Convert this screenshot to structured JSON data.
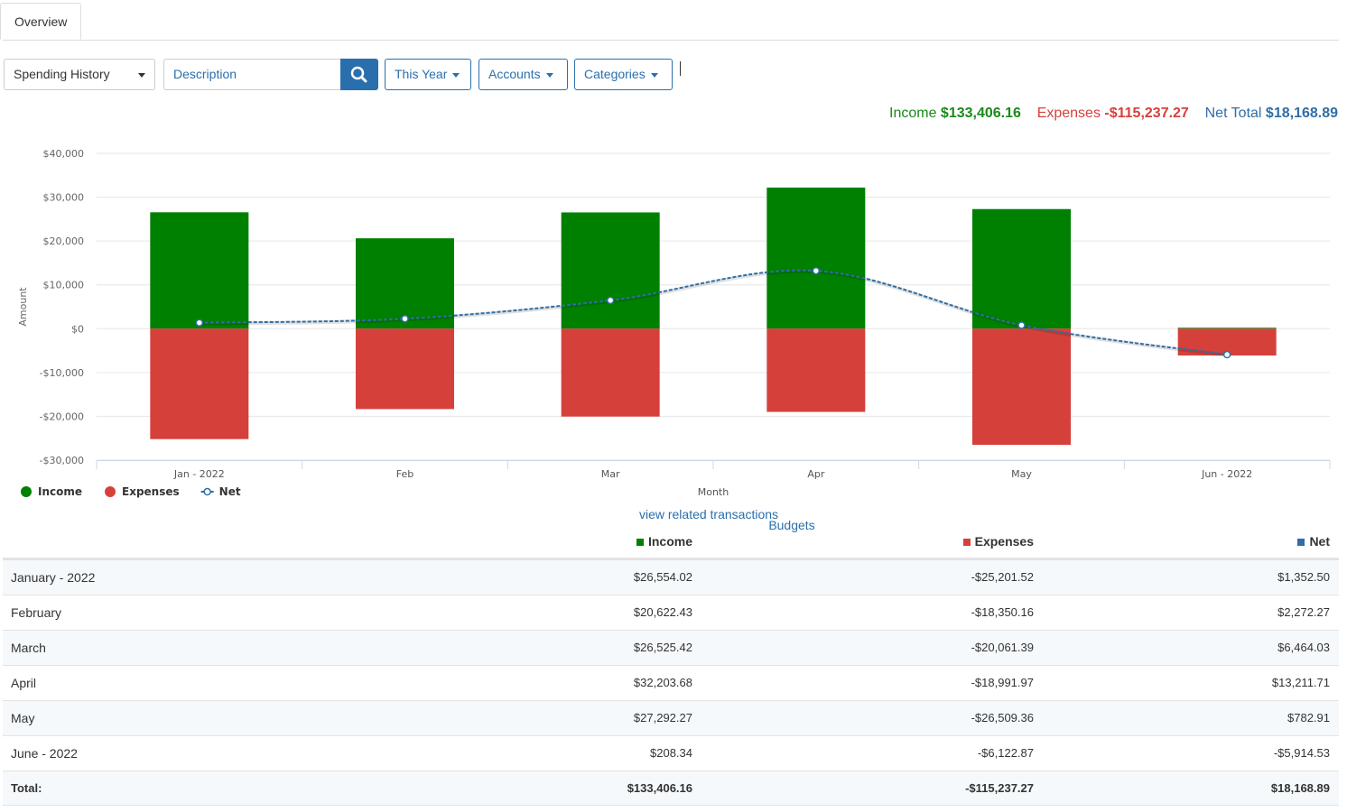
{
  "tabs": [
    "Overview",
    "Budgets"
  ],
  "controls": {
    "report": "Spending History",
    "search_placeholder": "Description",
    "period": "This Year",
    "accounts": "Accounts",
    "categories": "Categories"
  },
  "summary": {
    "income_label": "Income",
    "income": "$133,406.16",
    "expenses_label": "Expenses",
    "expenses": "-$115,237.27",
    "net_label": "Net Total",
    "net": "$18,168.89"
  },
  "chart_data": {
    "type": "bar",
    "categories": [
      "Jan - 2022",
      "Feb",
      "Mar",
      "Apr",
      "May",
      "Jun - 2022"
    ],
    "series": [
      {
        "name": "Income",
        "color": "#008000",
        "values": [
          26554.02,
          20622.43,
          26525.42,
          32203.68,
          27292.27,
          208.34
        ]
      },
      {
        "name": "Expenses",
        "color": "#d6403b",
        "values": [
          -25201.52,
          -18350.16,
          -20061.39,
          -18991.97,
          -26509.36,
          -6122.87
        ]
      },
      {
        "name": "Net",
        "type": "line",
        "color": "#2f6ea6",
        "values": [
          1352.5,
          2272.27,
          6464.03,
          13211.71,
          782.91,
          -5914.53
        ]
      }
    ],
    "xlabel": "Month",
    "ylabel": "Amount",
    "ylim": [
      -30000,
      40000
    ],
    "yticks": [
      {
        "value": -30000,
        "label": "-$30,000"
      },
      {
        "value": -20000,
        "label": "-$20,000"
      },
      {
        "value": -10000,
        "label": "-$10,000"
      },
      {
        "value": 0,
        "label": "$0"
      },
      {
        "value": 10000,
        "label": "$10,000"
      },
      {
        "value": 20000,
        "label": "$20,000"
      },
      {
        "value": 30000,
        "label": "$30,000"
      },
      {
        "value": 40000,
        "label": "$40,000"
      }
    ],
    "grid": true,
    "legend": "bottom-left"
  },
  "link": "view related transactions",
  "table": {
    "header": [
      "Income",
      "Expenses",
      "Net"
    ],
    "rows": [
      [
        "January - 2022",
        "$26,554.02",
        "-$25,201.52",
        "$1,352.50"
      ],
      [
        "February",
        "$20,622.43",
        "-$18,350.16",
        "$2,272.27"
      ],
      [
        "March",
        "$26,525.42",
        "-$20,061.39",
        "$6,464.03"
      ],
      [
        "April",
        "$32,203.68",
        "-$18,991.97",
        "$13,211.71"
      ],
      [
        "May",
        "$27,292.27",
        "-$26,509.36",
        "$782.91"
      ],
      [
        "June - 2022",
        "$208.34",
        "-$6,122.87",
        "-$5,914.53"
      ]
    ],
    "total": [
      "Total:",
      "$133,406.16",
      "-$115,237.27",
      "$18,168.89"
    ]
  }
}
